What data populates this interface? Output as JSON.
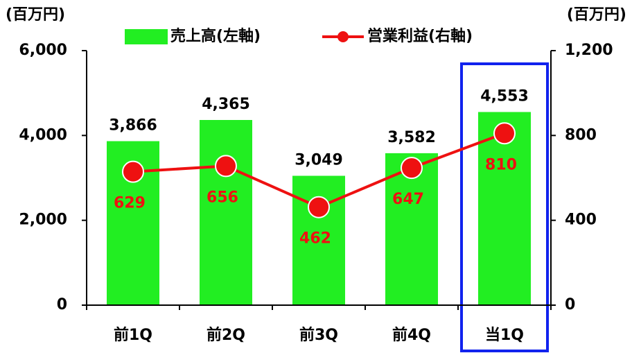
{
  "chart_data": {
    "type": "bar-line",
    "y_label": "(百万円)",
    "y2_label": "(百万円)",
    "categories": [
      "前1Q",
      "前2Q",
      "前3Q",
      "前4Q",
      "当1Q"
    ],
    "series": [
      {
        "name": "売上高(左軸)",
        "color": "#22ee22",
        "type": "bar",
        "values": [
          3866,
          4365,
          3049,
          3582,
          4553
        ],
        "value_labels": [
          "3,866",
          "4,365",
          "3,049",
          "3,582",
          "4,553"
        ]
      },
      {
        "name": "営業利益(右軸)",
        "color": "#ee1111",
        "type": "line",
        "axis": "y2",
        "values": [
          629,
          656,
          462,
          647,
          810
        ]
      }
    ],
    "ylim": [
      0,
      6000
    ],
    "yticks": [
      0,
      {
        "value": 2000,
        "label": "2,000"
      },
      {
        "value": 4000,
        "label": "4,000"
      },
      {
        "value": 6000,
        "label": "6,000"
      }
    ],
    "y2lim": [
      0,
      1200
    ],
    "y2ticks": [
      0,
      400,
      800,
      {
        "value": 1200,
        "label": "1,200"
      }
    ]
  }
}
